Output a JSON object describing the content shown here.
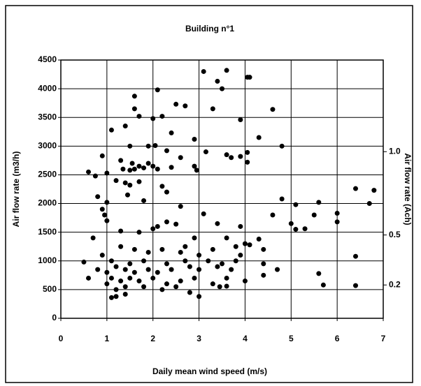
{
  "chart_data": {
    "type": "scatter",
    "title": "Building n°1",
    "xlabel": "Daily mean wind speed (m/s)",
    "ylabel": "Air flow rate (m3/h)",
    "y2label": "Air flow rate (Ach)",
    "color": "#000000",
    "grid": true,
    "xlim": [
      0,
      7
    ],
    "xticks": [
      0,
      1,
      2,
      3,
      4,
      5,
      6,
      7
    ],
    "ylim": [
      0,
      4500
    ],
    "yticks": [
      0,
      500,
      1000,
      1500,
      2000,
      2500,
      3000,
      3500,
      4000,
      4500
    ],
    "y2lim": [
      0,
      1.55
    ],
    "y2ticks": [
      0.2,
      0.5,
      {
        "value": 1.0,
        "label": "1.0"
      }
    ],
    "x": [
      3.1,
      3.6,
      4.1,
      4.05,
      3.4,
      3.5,
      2.1,
      1.6,
      2.5,
      2.7,
      3.3,
      4.6,
      1.6,
      1.4,
      2.2,
      2.0,
      3.9,
      1.7,
      2.4,
      4.3,
      1.1,
      2.9,
      4.8,
      1.5,
      1.9,
      2.05,
      2.3,
      3.15,
      4.05,
      3.6,
      3.7,
      3.9,
      2.6,
      0.9,
      1.3,
      1.55,
      1.7,
      1.8,
      1.9,
      2.0,
      2.1,
      1.6,
      2.4,
      2.9,
      2.95,
      4.05,
      1.35,
      1.5,
      0.6,
      1.0,
      0.75,
      1.2,
      1.4,
      1.5,
      1.7,
      2.2,
      2.3,
      1.45,
      0.8,
      1.8,
      2.6,
      1.0,
      0.9,
      0.95,
      1.0,
      3.1,
      4.8,
      4.6,
      5.1,
      5.6,
      6.0,
      6.4,
      6.8,
      6.7,
      5.0,
      5.1,
      5.3,
      5.5,
      6.0,
      1.3,
      1.7,
      2.0,
      2.3,
      2.5,
      3.4,
      3.9,
      0.7,
      2.1,
      3.6,
      4.0,
      4.1,
      4.3,
      3.8,
      1.3,
      1.6,
      1.9,
      2.2,
      2.6,
      3.0,
      3.3,
      0.9,
      1.1,
      1.5,
      1.8,
      2.3,
      2.7,
      3.2,
      3.5,
      3.9,
      4.4,
      4.7,
      0.5,
      0.8,
      1.0,
      1.2,
      1.4,
      1.6,
      1.9,
      2.1,
      2.4,
      2.8,
      3.0,
      3.4,
      3.7,
      4.4,
      1.1,
      1.3,
      1.5,
      1.7,
      2.0,
      2.3,
      2.6,
      2.9,
      3.3,
      3.6,
      4.0,
      4.4,
      0.6,
      1.0,
      1.2,
      1.4,
      1.8,
      2.2,
      2.5,
      2.8,
      3.0,
      3.45,
      3.6,
      1.1,
      1.2,
      1.4,
      5.6,
      5.7,
      6.4,
      6.4,
      2.7,
      3.8,
      2.9
    ],
    "values": [
      4300,
      4320,
      4200,
      4200,
      4130,
      4000,
      3980,
      3870,
      3730,
      3700,
      3650,
      3640,
      3650,
      3350,
      3520,
      3480,
      3460,
      3520,
      3230,
      3150,
      3280,
      3120,
      3000,
      3000,
      3000,
      3010,
      2920,
      2900,
      2890,
      2850,
      2800,
      2820,
      2800,
      2830,
      2750,
      2700,
      2650,
      2620,
      2700,
      2650,
      2600,
      2600,
      2630,
      2650,
      2580,
      2720,
      2600,
      2580,
      2550,
      2530,
      2480,
      2400,
      2360,
      2320,
      2380,
      2300,
      2200,
      2150,
      2120,
      2050,
      1950,
      2020,
      1900,
      1800,
      1700,
      1820,
      2080,
      1800,
      1980,
      2020,
      1830,
      2260,
      2230,
      2000,
      1650,
      1550,
      1560,
      1800,
      1680,
      1520,
      1500,
      1560,
      1680,
      1640,
      1650,
      1600,
      1400,
      1600,
      1400,
      1300,
      1280,
      1380,
      1250,
      1250,
      1200,
      1150,
      1200,
      1150,
      1100,
      1200,
      1100,
      1000,
      950,
      1000,
      950,
      1000,
      1000,
      950,
      1100,
      1200,
      850,
      980,
      850,
      800,
      900,
      850,
      800,
      850,
      800,
      850,
      900,
      850,
      900,
      850,
      950,
      700,
      650,
      700,
      650,
      700,
      600,
      650,
      700,
      600,
      700,
      650,
      750,
      700,
      600,
      500,
      550,
      550,
      500,
      550,
      450,
      380,
      550,
      560,
      360,
      380,
      420,
      780,
      580,
      1080,
      570,
      1250,
      1000,
      1400
    ]
  }
}
